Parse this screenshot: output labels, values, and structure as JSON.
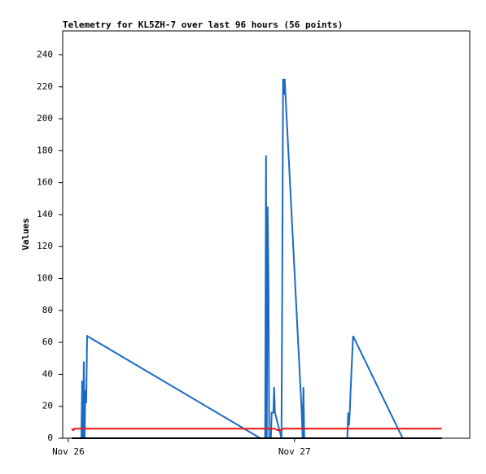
{
  "chart_data": {
    "type": "line",
    "title": "Telemetry for KL5ZH-7 over last 96 hours (56 points)",
    "ylabel": "Values",
    "xlim": [
      -0.6,
      42.6
    ],
    "xticks": [
      {
        "value": 0,
        "label": "Nov 26"
      },
      {
        "value": 24,
        "label": "Nov 27"
      }
    ],
    "ylim": [
      0,
      255
    ],
    "yticks": [
      0,
      20,
      40,
      60,
      80,
      100,
      120,
      140,
      160,
      180,
      200,
      220,
      240
    ],
    "grid": false,
    "series": [
      {
        "color": "#1a6ac4",
        "x": [
          1.38,
          1.47,
          1.55,
          1.64,
          1.73,
          1.81,
          1.9,
          1.99,
          20.37,
          20.89,
          20.98,
          21.06,
          21.15,
          21.24,
          21.32,
          21.5,
          21.58,
          21.76,
          21.84,
          21.93,
          22.62,
          22.71,
          22.79,
          22.88,
          22.96,
          24.78,
          24.86,
          24.95,
          25.04,
          29.61,
          29.7,
          29.78,
          29.87,
          29.96,
          30.22,
          35.48
        ],
        "values": [
          0,
          36,
          0,
          48,
          0,
          30,
          22,
          64,
          0,
          0,
          177,
          0,
          145,
          100,
          0,
          0,
          16,
          16,
          32,
          16,
          0,
          105,
          225,
          215,
          225,
          15,
          0,
          32,
          0,
          0,
          16,
          8,
          16,
          30,
          64,
          0
        ]
      },
      {
        "color": "#e8130f",
        "x": [
          0.35,
          0.52,
          0.69,
          21.93,
          22.19,
          22.53,
          22.79,
          39.63
        ],
        "values": [
          6,
          5,
          6,
          6,
          5,
          5,
          6,
          6
        ]
      },
      {
        "color": "#000000",
        "x": [
          0.35,
          39.63
        ],
        "values": [
          0,
          0
        ]
      }
    ]
  }
}
